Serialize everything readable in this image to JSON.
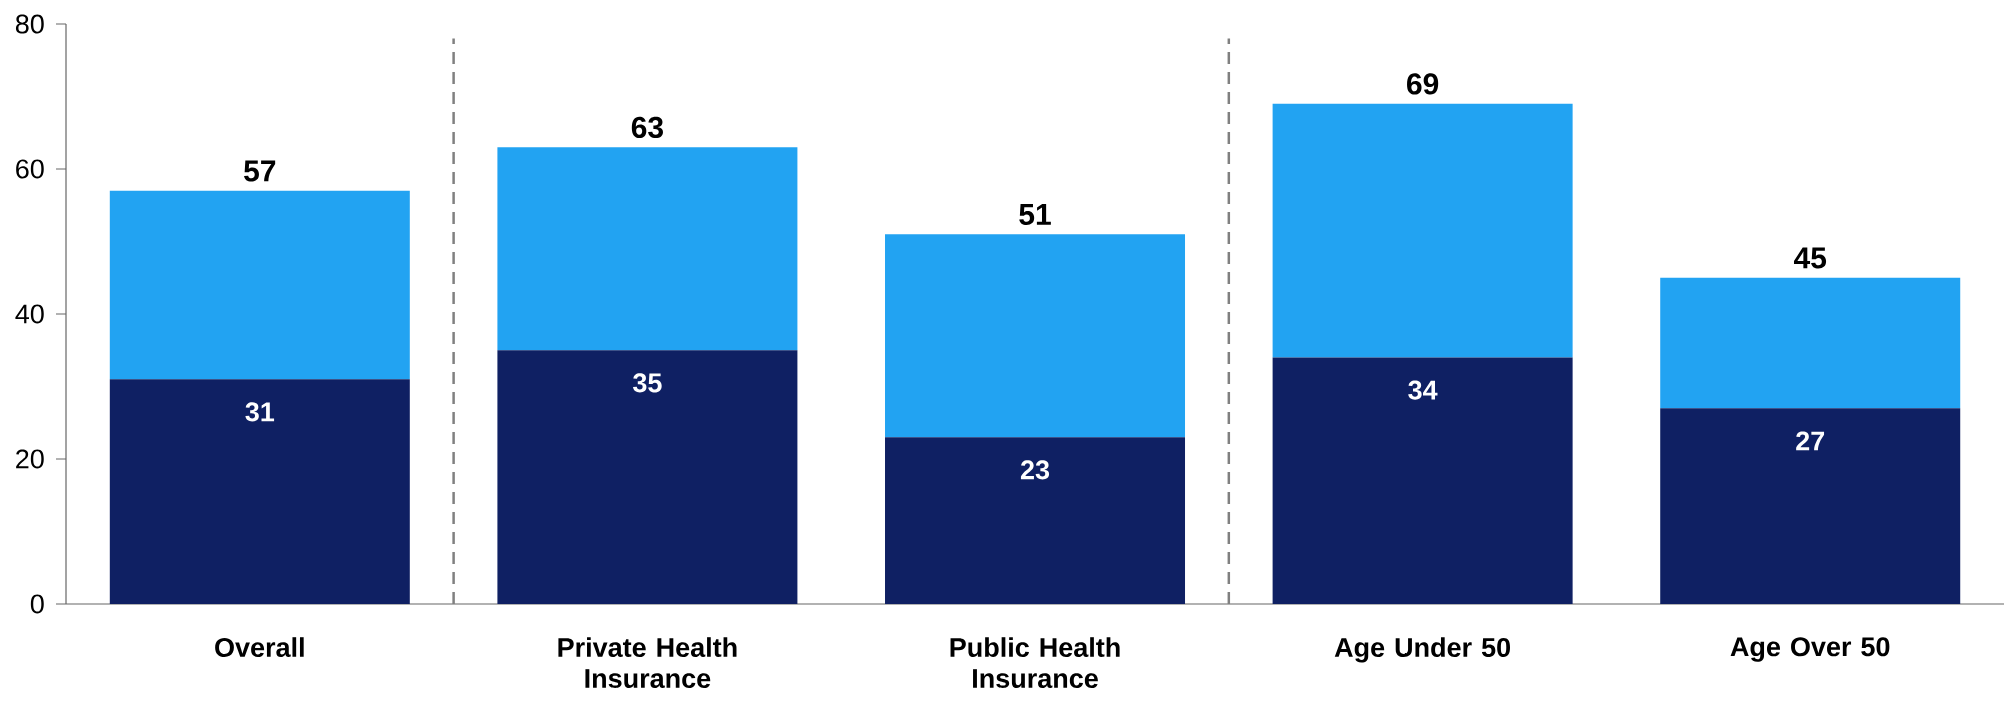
{
  "chart_data": {
    "type": "bar",
    "stacked": true,
    "categories": [
      "Overall",
      "Private Health Insurance",
      "Public Health Insurance",
      "Age Under 50",
      "Age Over 50"
    ],
    "series": [
      {
        "color": "#0f2063",
        "values": [
          31,
          35,
          23,
          34,
          27
        ],
        "value_labels": [
          "31",
          "35",
          "23",
          "34",
          "27"
        ]
      },
      {
        "color": "#22a3f2",
        "values": [
          26,
          28,
          28,
          35,
          18
        ]
      }
    ],
    "totals": [
      "57",
      "63",
      "51",
      "69",
      "45"
    ],
    "ylim": [
      0,
      80
    ],
    "yticks": [
      0,
      20,
      40,
      60,
      80
    ]
  }
}
